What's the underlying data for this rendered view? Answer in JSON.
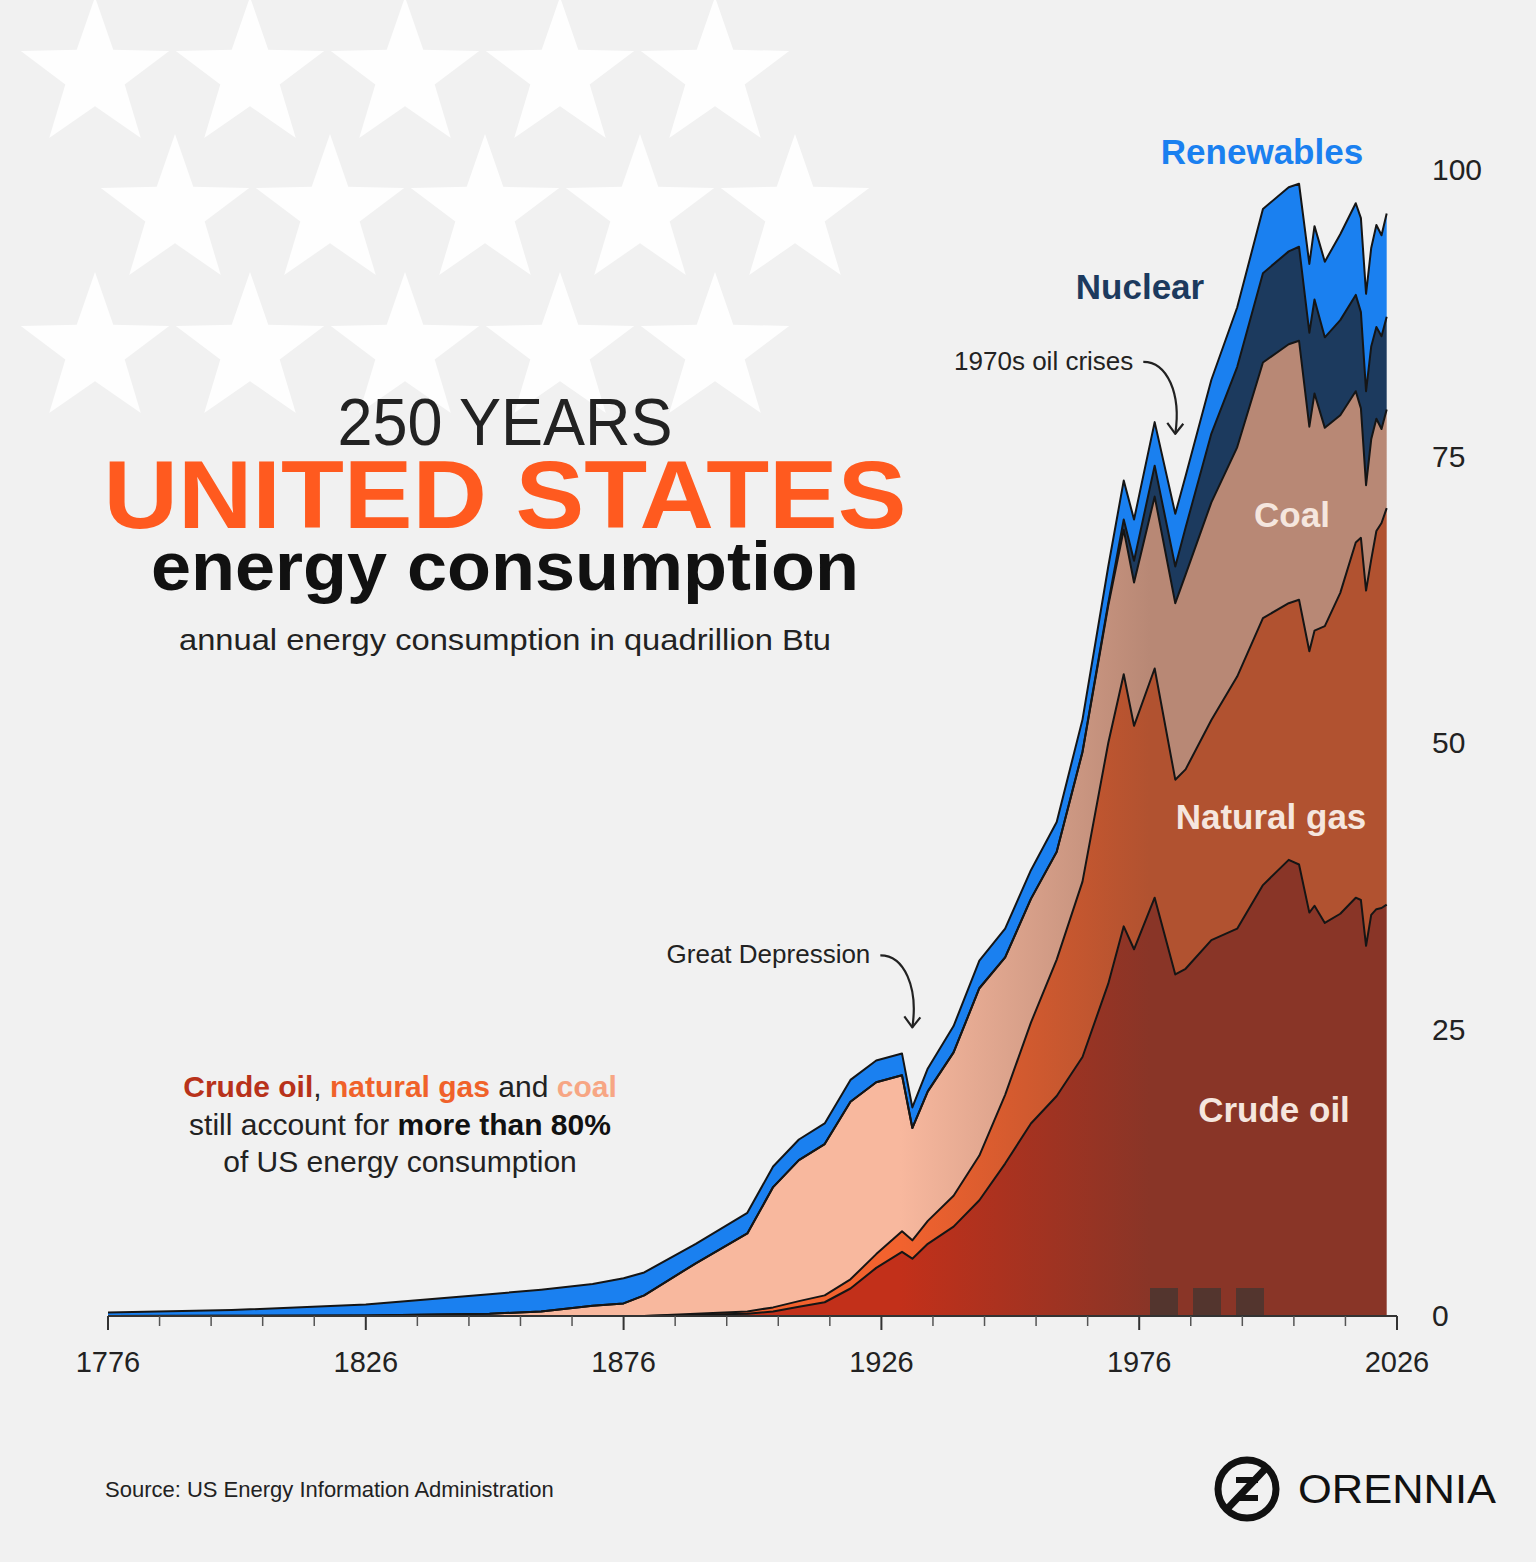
{
  "chart_data": {
    "type": "area",
    "stacked": true,
    "pretitle": "250 YEARS",
    "title": "UNITED STATES",
    "title_sub": "energy consumption",
    "subtitle": "annual energy consumption in quadrillion Btu",
    "x": [
      1776,
      1800,
      1826,
      1850,
      1860,
      1870,
      1876,
      1880,
      1890,
      1900,
      1905,
      1910,
      1915,
      1920,
      1925,
      1930,
      1932,
      1935,
      1940,
      1945,
      1950,
      1955,
      1960,
      1965,
      1970,
      1973,
      1975,
      1979,
      1983,
      1985,
      1990,
      1995,
      2000,
      2005,
      2007,
      2009,
      2010,
      2012,
      2015,
      2018,
      2019,
      2020,
      2021,
      2022,
      2023,
      2024
    ],
    "xlim": [
      1776,
      2026
    ],
    "xticks": [
      1776,
      1826,
      1876,
      1926,
      1976,
      2026
    ],
    "ylim": [
      0,
      100
    ],
    "yticks": [
      0,
      25,
      50,
      75,
      100
    ],
    "grid": false,
    "series": [
      {
        "name": "Crude oil",
        "color": "#c2301a",
        "values": [
          0,
          0,
          0,
          0,
          0,
          0,
          0,
          0,
          0.1,
          0.2,
          0.4,
          0.8,
          1.2,
          2.4,
          4.2,
          5.6,
          5.0,
          6.3,
          7.8,
          10.1,
          13.3,
          16.8,
          19.2,
          22.6,
          29.0,
          34.0,
          32.0,
          36.5,
          29.8,
          30.3,
          32.8,
          33.8,
          37.6,
          39.8,
          39.4,
          35.2,
          35.8,
          34.3,
          35.1,
          36.5,
          36.3,
          32.3,
          35.0,
          35.5,
          35.6,
          35.9
        ]
      },
      {
        "name": "Natural gas",
        "color": "#f2622e",
        "values": [
          0,
          0,
          0,
          0,
          0,
          0,
          0,
          0,
          0.1,
          0.2,
          0.35,
          0.5,
          0.6,
          0.8,
          1.2,
          1.8,
          1.6,
          2.0,
          2.7,
          3.9,
          6.0,
          8.8,
          11.9,
          15.3,
          21.0,
          22.0,
          19.5,
          20.0,
          17.0,
          17.4,
          19.2,
          22.0,
          23.3,
          22.4,
          23.1,
          22.8,
          24.0,
          25.9,
          28.0,
          31.0,
          31.6,
          31.0,
          31.0,
          33.0,
          33.6,
          34.6
        ]
      },
      {
        "name": "Coal",
        "color": "#f8b89e",
        "values": [
          0,
          0.02,
          0.05,
          0.2,
          0.4,
          0.9,
          1.1,
          1.8,
          4.4,
          6.8,
          10.5,
          12.3,
          13.2,
          15.5,
          15.0,
          13.6,
          9.8,
          11.3,
          12.5,
          14.6,
          12.0,
          10.8,
          9.4,
          11.3,
          12.0,
          12.6,
          12.5,
          15.0,
          15.4,
          17.0,
          19.0,
          20.0,
          22.3,
          22.6,
          22.6,
          19.6,
          20.7,
          17.3,
          15.5,
          13.2,
          11.3,
          9.2,
          10.5,
          9.8,
          8.2,
          8.6
        ]
      },
      {
        "name": "Nuclear",
        "color": "#1c3a5e",
        "values": [
          0,
          0,
          0,
          0,
          0,
          0,
          0,
          0,
          0,
          0,
          0,
          0,
          0,
          0,
          0,
          0,
          0,
          0,
          0,
          0,
          0,
          0,
          0.01,
          0.04,
          0.2,
          0.9,
          1.9,
          2.7,
          3.2,
          4.1,
          6.0,
          7.0,
          7.8,
          8.1,
          8.2,
          8.2,
          8.2,
          7.9,
          8.3,
          8.4,
          8.4,
          8.2,
          8.1,
          8.0,
          8.1,
          8.1
        ]
      },
      {
        "name": "Renewables",
        "color": "#1a80f0",
        "values": [
          0.3,
          0.5,
          0.95,
          1.7,
          1.9,
          1.9,
          2.2,
          2.0,
          1.7,
          1.8,
          1.8,
          1.8,
          1.8,
          1.9,
          1.9,
          1.9,
          1.8,
          2.0,
          2.3,
          2.4,
          2.5,
          2.5,
          2.6,
          2.8,
          3.2,
          3.4,
          3.6,
          3.8,
          4.6,
          4.5,
          4.7,
          5.2,
          5.6,
          5.6,
          5.5,
          6.0,
          6.4,
          6.6,
          7.5,
          8.0,
          8.2,
          8.5,
          8.6,
          8.9,
          8.8,
          9.0
        ]
      }
    ],
    "annotations": [
      {
        "text": "1970s oil crises",
        "x": 1983
      },
      {
        "text": "Great Depression",
        "x": 1932
      }
    ],
    "note": [
      [
        {
          "text": "Crude oil",
          "color": "#b8321a"
        },
        {
          "text": ", "
        },
        {
          "text": "natural gas",
          "color": "#f0622a"
        },
        {
          "text": " and "
        },
        {
          "text": "coal",
          "color": "#f7a684"
        }
      ],
      [
        {
          "text": "still account for "
        },
        {
          "text": "more than 80%",
          "color": "#111111"
        }
      ],
      [
        {
          "text": "of US energy consumption"
        }
      ]
    ],
    "source": "Source: US Energy Information Administration",
    "brand": "ORENNIA"
  }
}
